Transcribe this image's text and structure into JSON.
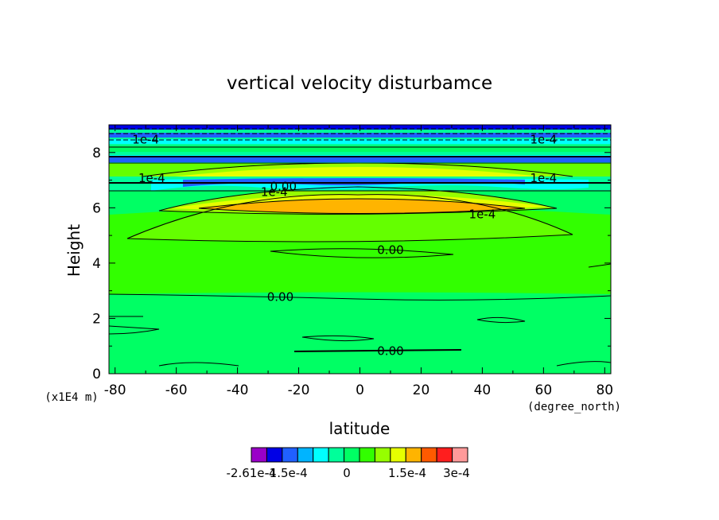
{
  "chart_data": {
    "type": "contour",
    "title": "vertical velocity disturbamce",
    "xlabel": "latitude",
    "xunits": "(degree_north)",
    "ylabel": "Height",
    "yunits": "(x1E4 m)",
    "xlim": [
      -82,
      82
    ],
    "ylim": [
      0,
      9
    ],
    "xticks": [
      "-80",
      "-60",
      "-40",
      "-20",
      "0",
      "20",
      "40",
      "60",
      "80"
    ],
    "yticks": [
      "0",
      "2",
      "4",
      "6",
      "8"
    ],
    "colorbar": {
      "colors": [
        "#9a00c8",
        "#0000e6",
        "#2060ff",
        "#00b4ff",
        "#00ffff",
        "#00ff9a",
        "#00ff64",
        "#32ff00",
        "#96ff00",
        "#e6ff00",
        "#ffb400",
        "#ff5a00",
        "#ff1e1e",
        "#ff9a9a"
      ],
      "labels": [
        "-2.61e-4",
        "-1.5e-4",
        "0",
        "1.5e-4",
        "3e-4"
      ]
    },
    "contour_labels": [
      {
        "text": "0.00",
        "x": 10,
        "y": 4.5
      },
      {
        "text": "0.00",
        "x": -26,
        "y": 2.8
      },
      {
        "text": "0.00",
        "x": 10,
        "y": 0.85
      },
      {
        "text": "1e-4",
        "x": 40,
        "y": 5.8
      },
      {
        "text": "1e-4",
        "x": -68,
        "y": 7.1
      },
      {
        "text": "1e-4",
        "x": 60,
        "y": 7.1
      },
      {
        "text": "1e-4",
        "x": -28,
        "y": 6.6
      },
      {
        "text": "0.00",
        "x": -25,
        "y": 6.8
      },
      {
        "text": "1e-4",
        "x": 60,
        "y": 8.5
      },
      {
        "text": "1e-4",
        "x": -70,
        "y": 8.5
      }
    ]
  }
}
